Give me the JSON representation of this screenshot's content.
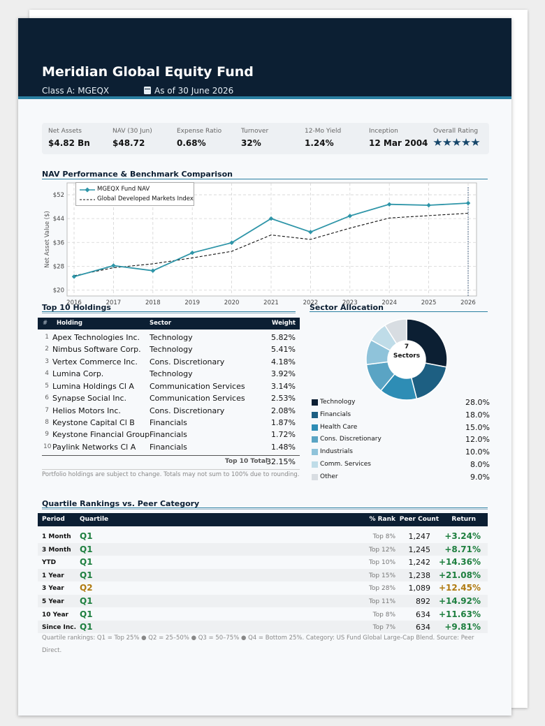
{
  "fund": {
    "name": "Meridian Global Equity Fund",
    "share_class": "Class A: MGEQX",
    "as_of": "As of 30 June 2026"
  },
  "stats": [
    {
      "label": "Net Assets",
      "value": "$4.82 Bn"
    },
    {
      "label": "NAV (30 Jun)",
      "value": "$48.72"
    },
    {
      "label": "Expense Ratio",
      "value": "0.68%"
    },
    {
      "label": "Turnover",
      "value": "32%"
    },
    {
      "label": "12-Mo Yield",
      "value": "1.24%"
    },
    {
      "label": "Inception",
      "value": "12 Mar 2004"
    },
    {
      "label": "Overall Rating",
      "stars": 5
    }
  ],
  "sections": {
    "performance": "NAV Performance & Benchmark Comparison",
    "holdings": "Top 10 Holdings",
    "sectors": "Sector Allocation",
    "quartile": "Quartile Rankings vs. Peer Category"
  },
  "chart_data": {
    "type": "line",
    "title": "",
    "xlabel": "",
    "ylabel": "Net Asset Value ($)",
    "x": [
      2016,
      2017,
      2018,
      2019,
      2020,
      2021,
      2022,
      2023,
      2024,
      2025,
      2026
    ],
    "ylim": [
      18,
      56
    ],
    "yticks": [
      "$20",
      "$28",
      "$36",
      "$44",
      "$52"
    ],
    "ytick_values": [
      20,
      28,
      36,
      44,
      52
    ],
    "grid": true,
    "legend_position": "top-left",
    "series": [
      {
        "name": "MGEQX Fund NAV",
        "color": "#2e95a8",
        "style": "solid-diamond",
        "values": [
          24.5,
          28.2,
          26.5,
          32.5,
          35.9,
          44.0,
          39.5,
          44.9,
          48.8,
          48.5,
          49.2
        ]
      },
      {
        "name": "Global Developed Markets Index",
        "color": "#111111",
        "style": "dashed",
        "values": [
          24.8,
          27.5,
          28.8,
          30.8,
          33.0,
          38.5,
          37.0,
          40.8,
          44.2,
          45.0,
          45.8
        ]
      }
    ]
  },
  "holdings": {
    "headers": {
      "num": "#",
      "holding": "Holding",
      "sector": "Sector",
      "weight": "Weight"
    },
    "rows": [
      {
        "num": "1",
        "name": "Apex Technologies Inc.",
        "sector": "Technology",
        "weight": "5.82%"
      },
      {
        "num": "2",
        "name": "Nimbus Software Corp.",
        "sector": "Technology",
        "weight": "5.41%"
      },
      {
        "num": "3",
        "name": "Vertex Commerce Inc.",
        "sector": "Cons. Discretionary",
        "weight": "4.18%"
      },
      {
        "num": "4",
        "name": "Lumina Corp.",
        "sector": "Technology",
        "weight": "3.92%"
      },
      {
        "num": "5",
        "name": "Lumina Holdings Cl A",
        "sector": "Communication Services",
        "weight": "3.14%"
      },
      {
        "num": "6",
        "name": "Synapse Social Inc.",
        "sector": "Communication Services",
        "weight": "2.53%"
      },
      {
        "num": "7",
        "name": "Helios Motors Inc.",
        "sector": "Cons. Discretionary",
        "weight": "2.08%"
      },
      {
        "num": "8",
        "name": "Keystone Capital Cl B",
        "sector": "Financials",
        "weight": "1.87%"
      },
      {
        "num": "9",
        "name": "Keystone Financial Group",
        "sector": "Financials",
        "weight": "1.72%"
      },
      {
        "num": "10",
        "name": "Paylink Networks Cl A",
        "sector": "Financials",
        "weight": "1.48%"
      }
    ],
    "total_label": "Top 10 Total",
    "total_value": "32.15%",
    "note": "Portfolio holdings are subject to change. Totals may not sum to 100% due to rounding."
  },
  "sector_allocation": {
    "center_count": "7",
    "center_label": "Sectors",
    "items": [
      {
        "name": "Technology",
        "value": 28.0,
        "label": "28.0%",
        "color": "#0c1f33"
      },
      {
        "name": "Financials",
        "value": 18.0,
        "label": "18.0%",
        "color": "#1d5f82"
      },
      {
        "name": "Health Care",
        "value": 15.0,
        "label": "15.0%",
        "color": "#2e8db5"
      },
      {
        "name": "Cons. Discretionary",
        "value": 12.0,
        "label": "12.0%",
        "color": "#5aa4c4"
      },
      {
        "name": "Industrials",
        "value": 10.0,
        "label": "10.0%",
        "color": "#8fc3da"
      },
      {
        "name": "Comm. Services",
        "value": 8.0,
        "label": "8.0%",
        "color": "#bfdce8"
      },
      {
        "name": "Other",
        "value": 9.0,
        "label": "9.0%",
        "color": "#d8dde2"
      }
    ]
  },
  "quartile": {
    "headers": {
      "period": "Period",
      "quartile": "Quartile",
      "rank": "% Rank",
      "peer": "Peer Count",
      "return": "Return"
    },
    "rows": [
      {
        "period": "1 Month",
        "quartile": "Q1",
        "rank": "Top 8%",
        "peer": "1,247",
        "return": "+3.24%"
      },
      {
        "period": "3 Month",
        "quartile": "Q1",
        "rank": "Top 12%",
        "peer": "1,245",
        "return": "+8.71%"
      },
      {
        "period": "YTD",
        "quartile": "Q1",
        "rank": "Top 10%",
        "peer": "1,242",
        "return": "+14.36%"
      },
      {
        "period": "1 Year",
        "quartile": "Q1",
        "rank": "Top 15%",
        "peer": "1,238",
        "return": "+21.08%"
      },
      {
        "period": "3 Year",
        "quartile": "Q2",
        "rank": "Top 28%",
        "peer": "1,089",
        "return": "+12.45%"
      },
      {
        "period": "5 Year",
        "quartile": "Q1",
        "rank": "Top 11%",
        "peer": "892",
        "return": "+14.92%"
      },
      {
        "period": "10 Year",
        "quartile": "Q1",
        "rank": "Top 8%",
        "peer": "634",
        "return": "+11.63%"
      },
      {
        "period": "Since Inc.",
        "quartile": "Q1",
        "rank": "Top 7%",
        "peer": "634",
        "return": "+9.81%"
      }
    ],
    "colors": {
      "Q1": "#1e7f3f",
      "Q2": "#b07a10"
    },
    "note_line1": "Quartile rankings: Q1 = Top 25% ● Q2 = 25–50% ● Q3 = 50–75% ● Q4 = Bottom 25%. Category: US Fund Global Large-Cap Blend. Source: Peer",
    "note_line2": "Direct."
  }
}
